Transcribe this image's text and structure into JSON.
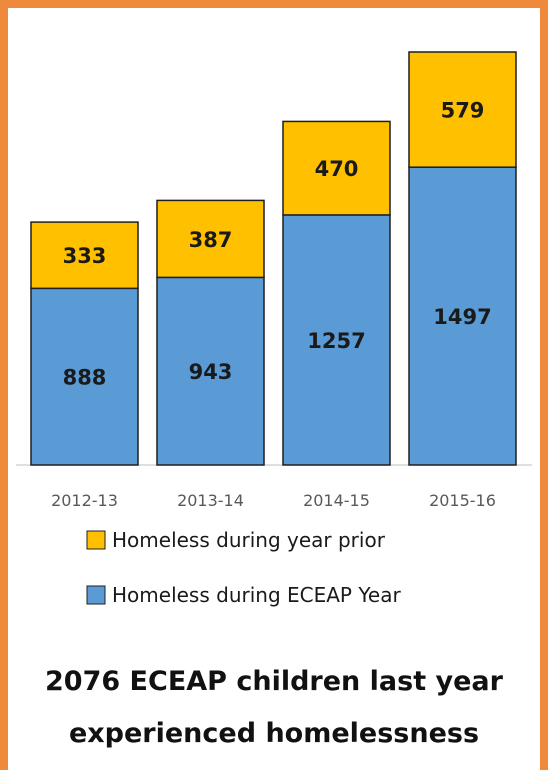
{
  "chart_data": {
    "type": "bar",
    "stacked": true,
    "categories": [
      "2012-13",
      "2013-14",
      "2014-15",
      "2015-16"
    ],
    "series": [
      {
        "name": "Homeless during ECEAP Year",
        "values": [
          888,
          943,
          1257,
          1497
        ],
        "color": "#5b9bd5"
      },
      {
        "name": "Homeless during year prior",
        "values": [
          333,
          387,
          470,
          579
        ],
        "color": "#ffc000"
      }
    ],
    "ylim": [
      0,
      2076
    ],
    "grid": false,
    "legend_position": "bottom",
    "legend_order": [
      1,
      0
    ]
  },
  "caption": {
    "line1": "2076 ECEAP children last year",
    "line2": "experienced homelessness"
  },
  "colors": {
    "frame": "#ef8a3c",
    "bar_outline": "#1f1f1f"
  }
}
